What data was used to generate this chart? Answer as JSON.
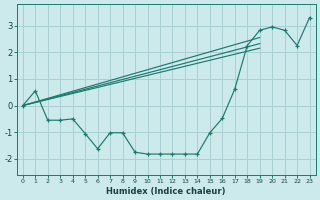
{
  "background_color": "#cce9eb",
  "grid_color": "#aad0d3",
  "line_color": "#1a7a6e",
  "xlabel": "Humidex (Indice chaleur)",
  "xlim": [
    -0.5,
    23.5
  ],
  "ylim": [
    -2.6,
    3.8
  ],
  "yticks": [
    -2,
    -1,
    0,
    1,
    2,
    3
  ],
  "xticks": [
    0,
    1,
    2,
    3,
    4,
    5,
    6,
    7,
    8,
    9,
    10,
    11,
    12,
    13,
    14,
    15,
    16,
    17,
    18,
    19,
    20,
    21,
    22,
    23
  ],
  "x_main": [
    0,
    1,
    2,
    3,
    4,
    5,
    6,
    7,
    8,
    9,
    10,
    11,
    12,
    13,
    14,
    15,
    16,
    17,
    18,
    19,
    20,
    21,
    22,
    23
  ],
  "y_main": [
    0.0,
    0.55,
    -0.55,
    -0.55,
    -0.5,
    -1.05,
    -1.62,
    -1.02,
    -1.02,
    -1.75,
    -1.82,
    -1.82,
    -1.82,
    -1.82,
    -1.82,
    -1.02,
    -0.48,
    0.62,
    2.25,
    2.82,
    2.95,
    2.82,
    2.25,
    3.3
  ],
  "diag_lines": [
    {
      "x": [
        0,
        19
      ],
      "y": [
        0.0,
        2.32
      ]
    },
    {
      "x": [
        0,
        19
      ],
      "y": [
        0.0,
        2.55
      ]
    },
    {
      "x": [
        0,
        19
      ],
      "y": [
        0.0,
        2.15
      ]
    }
  ]
}
